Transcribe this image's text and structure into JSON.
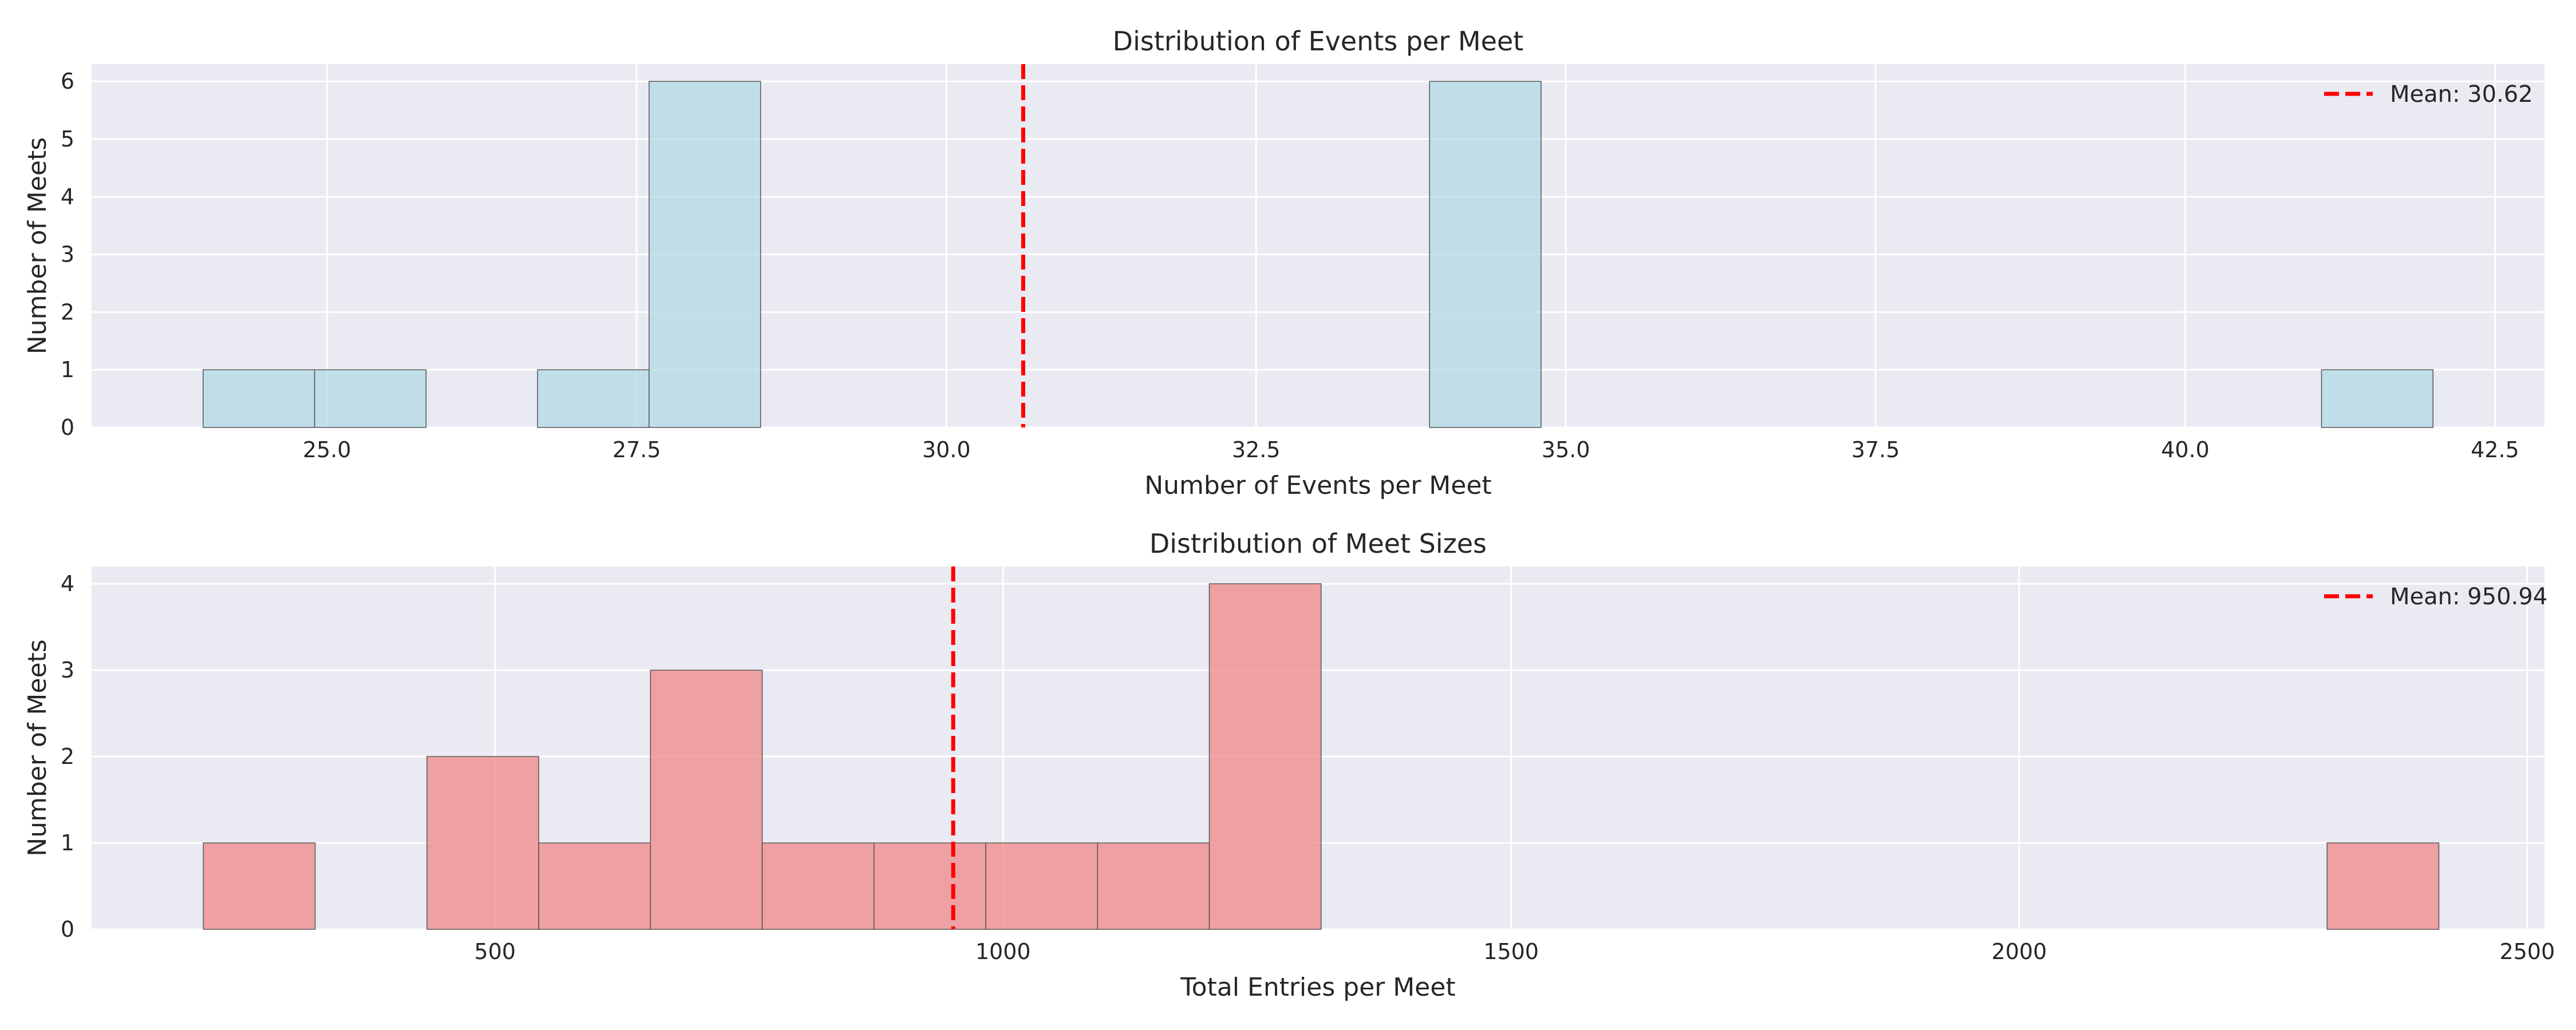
{
  "chart_data": [
    {
      "type": "bar",
      "title": "Distribution of Events per Meet",
      "xlabel": "Number of Events per Meet",
      "ylabel": "Number of Meets",
      "xlim": [
        23.1,
        42.9
      ],
      "ylim": [
        0,
        6.3
      ],
      "xticks": [
        25.0,
        27.5,
        30.0,
        32.5,
        35.0,
        37.5,
        40.0,
        42.5
      ],
      "xtick_labels": [
        "25.0",
        "27.5",
        "30.0",
        "32.5",
        "35.0",
        "37.5",
        "40.0",
        "42.5"
      ],
      "yticks": [
        0,
        1,
        2,
        3,
        4,
        5,
        6
      ],
      "ytick_labels": [
        "0",
        "1",
        "2",
        "3",
        "4",
        "5",
        "6"
      ],
      "bins": [
        {
          "x0": 24.0,
          "x1": 24.9,
          "count": 1
        },
        {
          "x0": 24.9,
          "x1": 25.8,
          "count": 1
        },
        {
          "x0": 26.7,
          "x1": 27.6,
          "count": 1
        },
        {
          "x0": 27.6,
          "x1": 28.5,
          "count": 6
        },
        {
          "x0": 33.9,
          "x1": 34.8,
          "count": 6
        },
        {
          "x0": 41.1,
          "x1": 42.0,
          "count": 1
        }
      ],
      "mean": 30.62,
      "legend_label": "Mean: 30.62",
      "legend_position": "upper right",
      "bar_color": "#add8e6",
      "mean_color": "#ff0000",
      "grid": true
    },
    {
      "type": "bar",
      "title": "Distribution of Meet Sizes",
      "xlabel": "Total Entries per Meet",
      "ylabel": "Number of Meets",
      "xlim": [
        103,
        2517
      ],
      "ylim": [
        0,
        4.2
      ],
      "xticks": [
        500,
        1000,
        1500,
        2000,
        2500
      ],
      "xtick_labels": [
        "500",
        "1000",
        "1500",
        "2000",
        "2500"
      ],
      "yticks": [
        0,
        1,
        2,
        3,
        4
      ],
      "ytick_labels": [
        "0",
        "1",
        "2",
        "3",
        "4"
      ],
      "bins": [
        {
          "x0": 213,
          "x1": 323,
          "count": 1
        },
        {
          "x0": 433,
          "x1": 543,
          "count": 2
        },
        {
          "x0": 543,
          "x1": 653,
          "count": 1
        },
        {
          "x0": 653,
          "x1": 763,
          "count": 3
        },
        {
          "x0": 763,
          "x1": 873,
          "count": 1
        },
        {
          "x0": 873,
          "x1": 983,
          "count": 1
        },
        {
          "x0": 983,
          "x1": 1093,
          "count": 1
        },
        {
          "x0": 1093,
          "x1": 1203,
          "count": 1
        },
        {
          "x0": 1203,
          "x1": 1313,
          "count": 4
        },
        {
          "x0": 2303,
          "x1": 2413,
          "count": 1
        }
      ],
      "mean": 950.94,
      "legend_label": "Mean: 950.94",
      "legend_position": "upper right",
      "bar_color": "#f08080",
      "mean_color": "#ff0000",
      "grid": true
    }
  ]
}
